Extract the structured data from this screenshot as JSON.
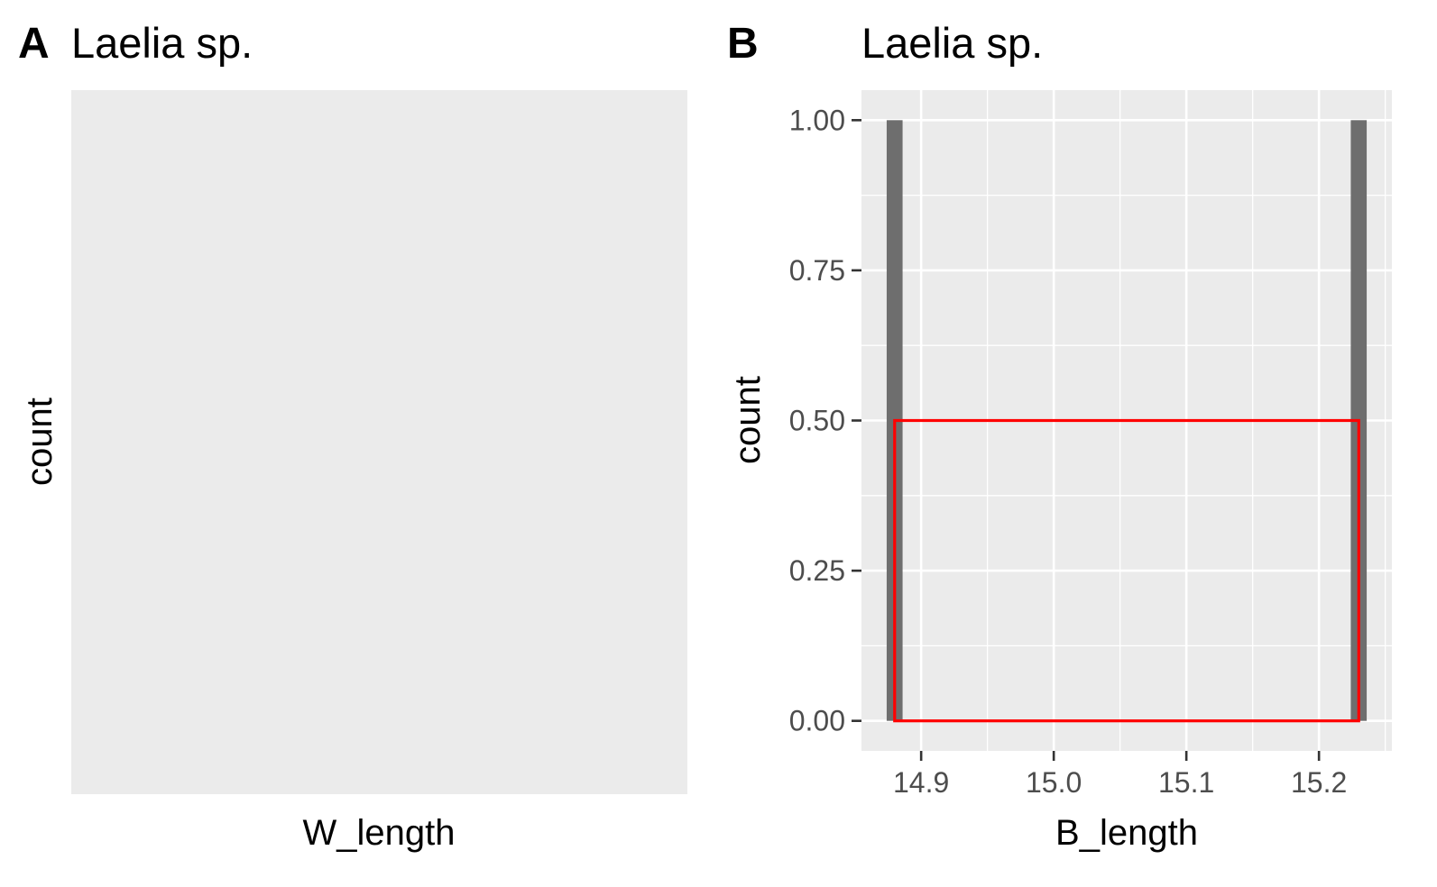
{
  "chart_data": [
    {
      "panel_tag": "A",
      "type": "bar",
      "title": "Laelia sp.",
      "xlabel": "W_length",
      "ylabel": "count",
      "values": [],
      "grid": false,
      "colors": {
        "panel_bg": "#ebebeb"
      }
    },
    {
      "panel_tag": "B",
      "type": "bar",
      "title": "Laelia sp.",
      "xlabel": "B_length",
      "ylabel": "count",
      "xlim": [
        14.855,
        15.255
      ],
      "ylim": [
        -0.05,
        1.05
      ],
      "xticks": [
        14.9,
        15.0,
        15.1,
        15.2
      ],
      "xtick_labels": [
        "14.9",
        "15.0",
        "15.1",
        "15.2"
      ],
      "yticks": [
        0,
        0.25,
        0.5,
        0.75,
        1.0
      ],
      "ytick_labels": [
        "0.00",
        "0.25",
        "0.50",
        "0.75",
        "1.00"
      ],
      "bars": [
        {
          "x_start": 14.874,
          "x_end": 14.886,
          "count": 1
        },
        {
          "x_start": 15.224,
          "x_end": 15.236,
          "count": 1
        }
      ],
      "highlight_rect": {
        "x_start": 14.88,
        "x_end": 15.23,
        "y_bottom": 0,
        "y_top": 0.5
      },
      "grid": true,
      "colors": {
        "panel_bg": "#ebebeb",
        "grid": "#ffffff",
        "bar": "#6e6e6e",
        "highlight": "#ff0000"
      }
    }
  ]
}
